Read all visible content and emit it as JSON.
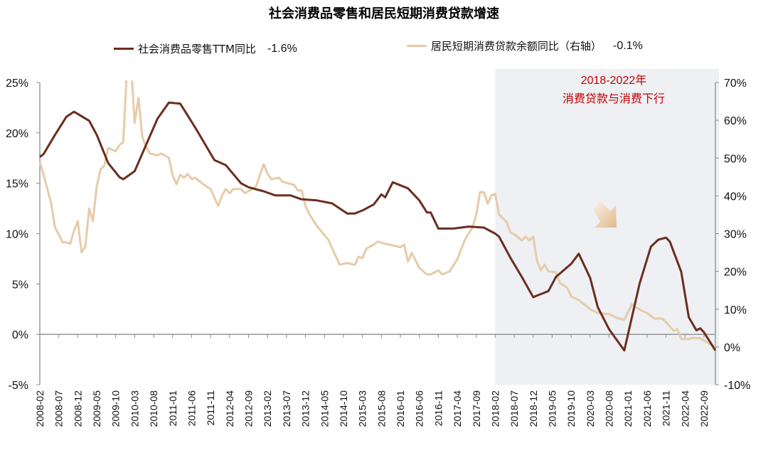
{
  "chart_data": {
    "type": "line",
    "title": "社会消费品零售和居民短期消费贷款增速",
    "x_ticks": [
      "2008-02",
      "2008-07",
      "2008-12",
      "2009-05",
      "2009-10",
      "2010-03",
      "2010-08",
      "2011-01",
      "2011-06",
      "2011-11",
      "2012-04",
      "2012-09",
      "2013-02",
      "2013-07",
      "2013-12",
      "2014-05",
      "2014-10",
      "2015-03",
      "2015-08",
      "2016-01",
      "2016-06",
      "2016-11",
      "2017-04",
      "2017-09",
      "2018-02",
      "2018-07",
      "2018-12",
      "2019-05",
      "2019-10",
      "2020-03",
      "2020-08",
      "2021-01",
      "2021-06",
      "2021-11",
      "2022-04",
      "2022-09"
    ],
    "x_range": [
      "2008-02",
      "2022-12"
    ],
    "y_left": {
      "ticks": [
        "25%",
        "20%",
        "15%",
        "10%",
        "5%",
        "0%",
        "-5%"
      ],
      "range": [
        -5,
        25
      ]
    },
    "y_right": {
      "ticks": [
        "70%",
        "60%",
        "50%",
        "40%",
        "30%",
        "20%",
        "10%",
        "0%",
        "-10%"
      ],
      "range": [
        -10,
        70
      ]
    },
    "grid": false,
    "legend_position": "top",
    "series": [
      {
        "name": "社会消费品零售TTM同比",
        "latest_label": "-1.6%",
        "axis": "left",
        "color": "#6b2d1e",
        "points": [
          [
            "2008-02",
            17.6
          ],
          [
            "2008-03",
            17.9
          ],
          [
            "2008-06",
            19.8
          ],
          [
            "2008-09",
            21.6
          ],
          [
            "2008-11",
            22.1
          ],
          [
            "2009-03",
            21.2
          ],
          [
            "2009-05",
            19.8
          ],
          [
            "2009-08",
            17.0
          ],
          [
            "2009-11",
            15.6
          ],
          [
            "2009-12",
            15.4
          ],
          [
            "2010-03",
            16.2
          ],
          [
            "2010-06",
            18.8
          ],
          [
            "2010-09",
            21.4
          ],
          [
            "2010-12",
            23.0
          ],
          [
            "2011-03",
            22.9
          ],
          [
            "2011-07",
            20.5
          ],
          [
            "2011-12",
            17.3
          ],
          [
            "2012-03",
            16.8
          ],
          [
            "2012-07",
            15.0
          ],
          [
            "2012-09",
            14.6
          ],
          [
            "2013-01",
            14.2
          ],
          [
            "2013-04",
            13.8
          ],
          [
            "2013-08",
            13.8
          ],
          [
            "2013-11",
            13.4
          ],
          [
            "2014-03",
            13.3
          ],
          [
            "2014-07",
            13.0
          ],
          [
            "2014-11",
            12.0
          ],
          [
            "2015-01",
            12.0
          ],
          [
            "2015-03",
            12.3
          ],
          [
            "2015-06",
            12.9
          ],
          [
            "2015-08",
            13.9
          ],
          [
            "2015-09",
            13.6
          ],
          [
            "2015-11",
            15.1
          ],
          [
            "2016-03",
            14.5
          ],
          [
            "2016-06",
            13.3
          ],
          [
            "2016-08",
            12.1
          ],
          [
            "2016-09",
            12.1
          ],
          [
            "2016-11",
            10.5
          ],
          [
            "2017-03",
            10.5
          ],
          [
            "2017-07",
            10.7
          ],
          [
            "2017-11",
            10.6
          ],
          [
            "2018-02",
            10.0
          ],
          [
            "2018-03",
            9.7
          ],
          [
            "2018-06",
            7.6
          ],
          [
            "2018-09",
            5.7
          ],
          [
            "2018-12",
            3.7
          ],
          [
            "2019-04",
            4.3
          ],
          [
            "2019-06",
            5.7
          ],
          [
            "2019-10",
            7.0
          ],
          [
            "2019-12",
            8.0
          ],
          [
            "2020-03",
            5.6
          ],
          [
            "2020-05",
            2.7
          ],
          [
            "2020-08",
            0.5
          ],
          [
            "2020-12",
            -1.6
          ],
          [
            "2021-02",
            1.7
          ],
          [
            "2021-04",
            5.0
          ],
          [
            "2021-07",
            8.7
          ],
          [
            "2021-09",
            9.4
          ],
          [
            "2021-11",
            9.6
          ],
          [
            "2021-12",
            9.2
          ],
          [
            "2022-03",
            6.2
          ],
          [
            "2022-05",
            1.7
          ],
          [
            "2022-07",
            0.4
          ],
          [
            "2022-08",
            0.6
          ],
          [
            "2022-09",
            0.2
          ],
          [
            "2022-12",
            -1.6
          ]
        ]
      },
      {
        "name": "居民短期消费贷款余额同比（右轴）",
        "latest_label": "-0.1%",
        "axis": "right",
        "color": "#e6cba8",
        "points": [
          [
            "2008-02",
            49
          ],
          [
            "2008-03",
            45.6
          ],
          [
            "2008-05",
            38
          ],
          [
            "2008-06",
            31.6
          ],
          [
            "2008-07",
            29.8
          ],
          [
            "2008-08",
            27.7
          ],
          [
            "2008-09",
            27.7
          ],
          [
            "2008-10",
            27.3
          ],
          [
            "2008-11",
            30.7
          ],
          [
            "2008-12",
            33.3
          ],
          [
            "2009-01",
            25
          ],
          [
            "2009-02",
            26.6
          ],
          [
            "2009-03",
            36.7
          ],
          [
            "2009-04",
            33.3
          ],
          [
            "2009-05",
            42.6
          ],
          [
            "2009-06",
            47
          ],
          [
            "2009-07",
            48
          ],
          [
            "2009-08",
            52.7
          ],
          [
            "2009-10",
            51.8
          ],
          [
            "2009-11",
            53.5
          ],
          [
            "2009-12",
            54.2
          ],
          [
            "2010-01",
            75
          ],
          [
            "2010-02",
            75
          ],
          [
            "2010-03",
            59.3
          ],
          [
            "2010-04",
            66
          ],
          [
            "2010-05",
            55.6
          ],
          [
            "2010-06",
            53
          ],
          [
            "2010-07",
            51.2
          ],
          [
            "2010-09",
            50.7
          ],
          [
            "2010-10",
            51.2
          ],
          [
            "2010-12",
            50.1
          ],
          [
            "2011-01",
            45.4
          ],
          [
            "2011-02",
            43.1
          ],
          [
            "2011-03",
            45.6
          ],
          [
            "2011-04",
            44.8
          ],
          [
            "2011-05",
            45.8
          ],
          [
            "2011-06",
            44.4
          ],
          [
            "2011-07",
            44.8
          ],
          [
            "2011-08",
            43.9
          ],
          [
            "2011-10",
            42.4
          ],
          [
            "2011-11",
            41.8
          ],
          [
            "2012-01",
            37.3
          ],
          [
            "2012-02",
            40.1
          ],
          [
            "2012-03",
            41.8
          ],
          [
            "2012-04",
            40.7
          ],
          [
            "2012-05",
            41.8
          ],
          [
            "2012-07",
            41.8
          ],
          [
            "2012-08",
            40.7
          ],
          [
            "2012-10",
            41.8
          ],
          [
            "2012-11",
            42.6
          ],
          [
            "2013-01",
            48.4
          ],
          [
            "2013-02",
            45.8
          ],
          [
            "2013-03",
            44.4
          ],
          [
            "2013-05",
            44.8
          ],
          [
            "2013-06",
            43.7
          ],
          [
            "2013-09",
            42.9
          ],
          [
            "2013-10",
            41.4
          ],
          [
            "2013-11",
            41.4
          ],
          [
            "2013-12",
            37.3
          ],
          [
            "2014-01",
            35.2
          ],
          [
            "2014-03",
            32
          ],
          [
            "2014-06",
            28.4
          ],
          [
            "2014-09",
            21.8
          ],
          [
            "2014-11",
            22.2
          ],
          [
            "2015-01",
            21.7
          ],
          [
            "2015-02",
            23.9
          ],
          [
            "2015-03",
            23.5
          ],
          [
            "2015-04",
            26
          ],
          [
            "2015-06",
            27.1
          ],
          [
            "2015-07",
            27.9
          ],
          [
            "2015-09",
            27.3
          ],
          [
            "2015-11",
            26.9
          ],
          [
            "2016-01",
            26.4
          ],
          [
            "2016-02",
            27.1
          ],
          [
            "2016-03",
            22.6
          ],
          [
            "2016-04",
            24.9
          ],
          [
            "2016-06",
            20.9
          ],
          [
            "2016-08",
            19.2
          ],
          [
            "2016-09",
            19.2
          ],
          [
            "2016-11",
            20.3
          ],
          [
            "2016-12",
            19.2
          ],
          [
            "2017-02",
            20.0
          ],
          [
            "2017-04",
            23.2
          ],
          [
            "2017-06",
            28.4
          ],
          [
            "2017-08",
            31.6
          ],
          [
            "2017-09",
            35
          ],
          [
            "2017-10",
            41
          ],
          [
            "2017-11",
            41
          ],
          [
            "2017-12",
            37.9
          ],
          [
            "2018-01",
            40.1
          ],
          [
            "2018-02",
            40.5
          ],
          [
            "2018-03",
            35
          ],
          [
            "2018-05",
            33.1
          ],
          [
            "2018-06",
            30.3
          ],
          [
            "2018-07",
            29.8
          ],
          [
            "2018-09",
            28.2
          ],
          [
            "2018-10",
            29.2
          ],
          [
            "2018-11",
            28.2
          ],
          [
            "2018-12",
            29.2
          ],
          [
            "2019-01",
            22.8
          ],
          [
            "2019-02",
            20.3
          ],
          [
            "2019-03",
            21.8
          ],
          [
            "2019-04",
            20.0
          ],
          [
            "2019-06",
            19.8
          ],
          [
            "2019-07",
            17.0
          ],
          [
            "2019-09",
            15.6
          ],
          [
            "2019-10",
            13.4
          ],
          [
            "2019-12",
            12.4
          ],
          [
            "2020-03",
            10.0
          ],
          [
            "2020-05",
            9.0
          ],
          [
            "2020-08",
            8.7
          ],
          [
            "2020-10",
            7.7
          ],
          [
            "2020-12",
            7.2
          ],
          [
            "2021-02",
            11.3
          ],
          [
            "2021-03",
            10.5
          ],
          [
            "2021-05",
            9.4
          ],
          [
            "2021-06",
            9.0
          ],
          [
            "2021-08",
            7.5
          ],
          [
            "2021-10",
            7.5
          ],
          [
            "2021-11",
            6.6
          ],
          [
            "2022-01",
            4.3
          ],
          [
            "2022-02",
            4.7
          ],
          [
            "2022-03",
            2.1
          ],
          [
            "2022-05",
            2.1
          ],
          [
            "2022-06",
            2.4
          ],
          [
            "2022-08",
            2.3
          ],
          [
            "2022-10",
            1.1
          ],
          [
            "2022-12",
            -0.1
          ]
        ]
      }
    ],
    "shaded_region": {
      "from": "2018-02",
      "to": "2022-12",
      "color": "#eef0f4"
    },
    "annotation": {
      "line1": "2018-2022年",
      "line2": "消费贷款与消费下行",
      "color": "#c00000"
    }
  }
}
